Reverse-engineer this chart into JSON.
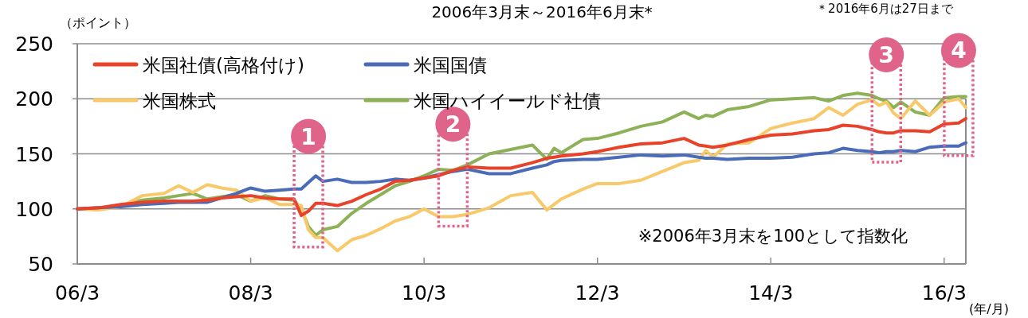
{
  "chart_data": {
    "type": "line",
    "title": "2006年3月末～2016年6月末*",
    "ylabel": "（ポイント）",
    "xlabel": "(年/月)",
    "annotations": [
      "＊2016年6月は27日まで",
      "※2006年3月末を100として指数化",
      {
        "text": "1",
        "x": "2008-11",
        "y": 124
      },
      {
        "text": "2",
        "x": "2010-07",
        "y": 135
      },
      {
        "text": "3",
        "x": "2015-07",
        "y": 198
      },
      {
        "text": "4",
        "x": "2016-05",
        "y": 202
      }
    ],
    "x": [
      "2006-03",
      "2006-06",
      "2006-09",
      "2006-12",
      "2007-03",
      "2007-05",
      "2007-07",
      "2007-09",
      "2007-11",
      "2008-01",
      "2008-03",
      "2008-05",
      "2008-07",
      "2008-09",
      "2008-10",
      "2008-11",
      "2008-12",
      "2009-01",
      "2009-03",
      "2009-05",
      "2009-07",
      "2009-09",
      "2009-11",
      "2010-01",
      "2010-03",
      "2010-05",
      "2010-07",
      "2010-09",
      "2010-12",
      "2011-03",
      "2011-06",
      "2011-08",
      "2011-09",
      "2011-10",
      "2012-01",
      "2012-03",
      "2012-06",
      "2012-09",
      "2012-12",
      "2013-03",
      "2013-05",
      "2013-06",
      "2013-07",
      "2013-09",
      "2013-12",
      "2014-03",
      "2014-06",
      "2014-09",
      "2014-11",
      "2015-01",
      "2015-03",
      "2015-05",
      "2015-06",
      "2015-07",
      "2015-08",
      "2015-09",
      "2015-11",
      "2016-01",
      "2016-03",
      "2016-05",
      "2016-06"
    ],
    "series": [
      {
        "name": "米国社債(高格付け)",
        "color": "#e8432a",
        "values": [
          100,
          101,
          104,
          106,
          107,
          107,
          107,
          108,
          110,
          111,
          112,
          110,
          109,
          109,
          94,
          98,
          105,
          105,
          103,
          107,
          113,
          118,
          125,
          126,
          128,
          130,
          135,
          138,
          137,
          137,
          142,
          146,
          147,
          148,
          150,
          152,
          156,
          159,
          160,
          164,
          158,
          157,
          156,
          158,
          163,
          167,
          168,
          171,
          172,
          176,
          175,
          172,
          170,
          169,
          169,
          171,
          171,
          170,
          177,
          178,
          182
        ]
      },
      {
        "name": "米国国債",
        "color": "#4a6bb8",
        "values": [
          100,
          101,
          102,
          104,
          105,
          106,
          106,
          106,
          110,
          114,
          119,
          116,
          117,
          118,
          118,
          124,
          130,
          125,
          127,
          124,
          124,
          125,
          127,
          126,
          128,
          131,
          134,
          136,
          132,
          132,
          137,
          140,
          143,
          144,
          145,
          145,
          147,
          149,
          148,
          149,
          147,
          146,
          146,
          145,
          146,
          146,
          147,
          150,
          151,
          155,
          153,
          152,
          151,
          152,
          152,
          153,
          152,
          156,
          157,
          157,
          160
        ]
      },
      {
        "name": "米国株式",
        "color": "#f8c96a",
        "values": [
          100,
          99,
          102,
          112,
          114,
          121,
          115,
          122,
          119,
          117,
          107,
          110,
          104,
          104,
          103,
          81,
          74,
          74,
          62,
          72,
          76,
          82,
          89,
          93,
          100,
          93,
          93,
          95,
          101,
          112,
          115,
          99,
          104,
          109,
          118,
          123,
          123,
          126,
          134,
          142,
          144,
          153,
          147,
          159,
          160,
          173,
          178,
          182,
          192,
          185,
          195,
          199,
          194,
          197,
          187,
          182,
          198,
          185,
          197,
          200,
          192
        ]
      },
      {
        "name": "米国ハイイールド社債",
        "color": "#8db156",
        "values": [
          100,
          100,
          103,
          108,
          110,
          112,
          114,
          109,
          111,
          113,
          107,
          112,
          109,
          108,
          100,
          84,
          76,
          81,
          84,
          96,
          105,
          113,
          121,
          125,
          130,
          136,
          135,
          140,
          150,
          154,
          158,
          145,
          155,
          151,
          163,
          164,
          169,
          175,
          179,
          188,
          182,
          185,
          184,
          190,
          193,
          199,
          200,
          201,
          198,
          203,
          205,
          203,
          200,
          198,
          192,
          197,
          188,
          185,
          201,
          202,
          202
        ]
      }
    ],
    "xlim": [
      "2006-03",
      "2016-06"
    ],
    "xticks": [
      {
        "value": "2006-03",
        "label": "06/3"
      },
      {
        "value": "2008-03",
        "label": "08/3"
      },
      {
        "value": "2010-03",
        "label": "10/3"
      },
      {
        "value": "2012-03",
        "label": "12/3"
      },
      {
        "value": "2014-03",
        "label": "14/3"
      },
      {
        "value": "2016-03",
        "label": "16/3"
      }
    ],
    "ylim": [
      50,
      250
    ],
    "yticks": [
      50,
      100,
      150,
      200,
      250
    ],
    "grid": "y",
    "legend": "top left",
    "marker": "none",
    "line_style": "solid"
  }
}
